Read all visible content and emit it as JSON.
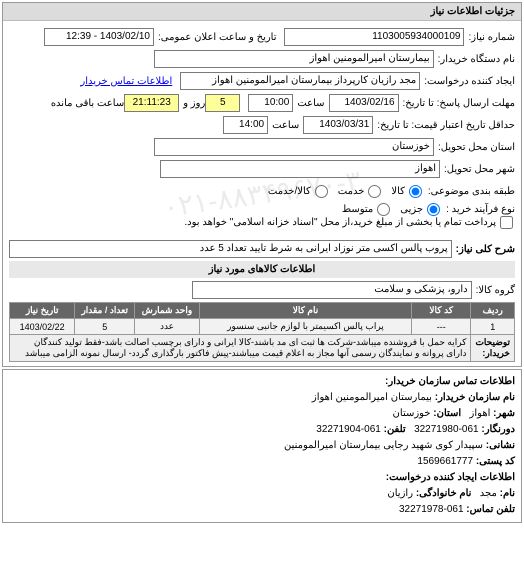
{
  "panel_title": "جزئیات اطلاعات نیاز",
  "header": {
    "req_num_label": "شماره نیاز:",
    "req_num": "1103005934000109",
    "ann_date_label": "تاریخ و ساعت اعلان عمومی:",
    "ann_date": "1403/02/10 - 12:39",
    "buyer_org_label": "نام دستگاه خریدار:",
    "buyer_org": "بیمارستان امیرالمومنین اهواز",
    "creator_label": "ایجاد کننده درخواست:",
    "creator": "مجد رازیان کارپرداز بیمارستان امیرالمومنین اهواز",
    "buyer_contact_label": "اطلاعات تماس خریدار",
    "response_deadline_label": "مهلت ارسال پاسخ: تا تاریخ:",
    "response_deadline_date": "1403/02/16",
    "time_label": "ساعت",
    "response_deadline_time": "10:00",
    "days_label": "روز و",
    "days_remaining": "5",
    "time_remaining": "21:11:23",
    "remaining_label": "ساعت باقی مانده",
    "validity_label": "حداقل تاریخ اعتبار قیمت: تا تاریخ:",
    "validity_date": "1403/03/31",
    "validity_time": "14:00",
    "province_label": "استان محل تحویل:",
    "province": "خوزستان",
    "city_label": "شهر محل تحویل:",
    "city": "اهواز",
    "category_label": "طبقه بندی موضوعی:",
    "cat_goods": "کالا",
    "cat_service": "خدمت",
    "cat_goods_service": "کالا/خدمت",
    "purchase_type_label": "نوع فرآیند خرید :",
    "pt_minor": "جزیی",
    "pt_medium": "متوسط",
    "pt_note": "پرداخت تمام یا بخشی از مبلغ خرید،از محل \"اسناد خزانه اسلامی\" خواهد بود."
  },
  "general_desc_label": "شرح کلی نیاز:",
  "general_desc": "پروب پالس اکسی متر نوزاد ایرانی به شرط تایید تعداد 5 عدد",
  "items_section_title": "اطلاعات کالاهای مورد نیاز",
  "group_label": "گروه کالا:",
  "group_value": "دارو، پزشکی و سلامت",
  "table": {
    "columns": [
      "ردیف",
      "کد کالا",
      "نام کالا",
      "واحد شمارش",
      "تعداد / مقدار",
      "تاریخ نیاز"
    ],
    "col_widths": [
      "7%",
      "12%",
      "43%",
      "13%",
      "12%",
      "13%"
    ],
    "rows": [
      [
        "1",
        "---",
        "پراب پالس اکسیمتر با لوازم جانبی سنسور",
        "عدد",
        "5",
        "1403/02/22"
      ]
    ],
    "desc_label": "توضیحات خریدار:",
    "desc_text": "کرایه حمل با فروشنده میباشد-شرکت ها ثبت ای مد باشند-کالا ایرانی و دارای برچسب اصالت باشد-فقط تولید کنندگان دارای پروانه و نمایندگان رسمی آنها مجاز به اعلام قیمت میباشند-پیش فاکتور بارگذاری گردد- ارسال نمونه الزامی میباشد"
  },
  "contact_section_title": "اطلاعات تماس سازمان خریدار:",
  "contact": {
    "org_label": "نام سازمان خریدار:",
    "org": "بیمارستان امیرالمومنین اهواز",
    "city_label": "شهر:",
    "city": "اهواز",
    "province_label": "استان:",
    "province": "خوزستان",
    "fax_label": "دورنگار:",
    "fax": "061-32271980",
    "phone_label": "تلفن:",
    "phone": "061-32271904",
    "address_label": "نشانی:",
    "address": "سپیدار کوی شهید رجایی بیمارستان امیرالمومنین",
    "postal_label": "کد پستی:",
    "postal": "1569661777",
    "creator_section": "اطلاعات ایجاد کننده درخواست:",
    "name_label": "نام:",
    "name": "مجد",
    "lname_label": "نام خانوادگی:",
    "lname": "رازیان",
    "cphone_label": "تلفن تماس:",
    "cphone": "061-32271978"
  },
  "watermark": "۰۲۱-۸۸۳۴۹۶۷۰-۳",
  "colors": {
    "header_bg": "#dcdcdc",
    "field_border": "#7a7a7a",
    "highlight_bg": "#ffff99",
    "th_bg": "#666666",
    "td_bg": "#f2f2f2"
  }
}
